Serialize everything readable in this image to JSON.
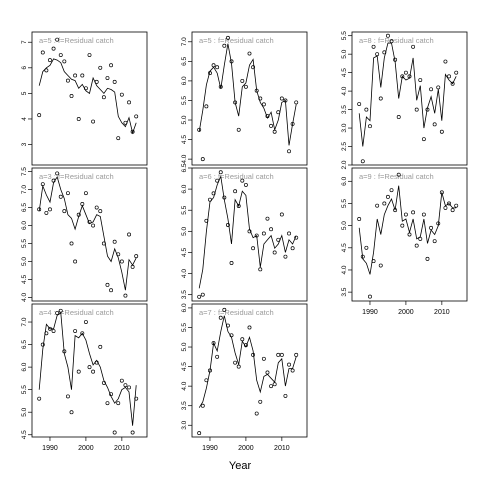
{
  "figure": {
    "xlabel": "Year"
  },
  "chart_data": [
    {
      "type": "scatter",
      "panel": "a=5",
      "label": "a=5 : f=Residual catch",
      "xlim": [
        1985,
        2017
      ],
      "ylim": [
        2.2,
        7.4
      ],
      "yticks": [
        3,
        4,
        5,
        6,
        7
      ],
      "xticks": [],
      "x": [
        1987,
        1988,
        1989,
        1990,
        1991,
        1992,
        1993,
        1994,
        1995,
        1996,
        1997,
        1998,
        1999,
        2000,
        2001,
        2002,
        2003,
        2004,
        2005,
        2006,
        2007,
        2008,
        2009,
        2010,
        2011,
        2012,
        2013,
        2014
      ],
      "y": [
        4.15,
        6.6,
        5.9,
        6.3,
        6.75,
        7.1,
        6.5,
        6.25,
        5.5,
        4.9,
        5.7,
        4.0,
        5.7,
        5.2,
        6.5,
        3.9,
        5.45,
        6.0,
        4.85,
        5.6,
        6.1,
        5.45,
        3.25,
        4.95,
        3.85,
        4.65,
        3.5,
        4.1
      ],
      "fit": [
        5.3,
        5.85,
        6.0,
        6.1,
        6.35,
        6.3,
        6.2,
        5.85,
        5.7,
        5.55,
        5.5,
        5.2,
        5.35,
        5.1,
        5.0,
        5.6,
        5.3,
        5.15,
        5.0,
        5.2,
        5.15,
        5.05,
        4.1,
        3.85,
        3.7,
        4.05,
        3.45,
        3.85
      ]
    },
    {
      "type": "scatter",
      "panel": "a=3",
      "label": "a=3 : f=Residual catch",
      "xlim": [
        1985,
        2017
      ],
      "ylim": [
        3.9,
        7.6
      ],
      "yticks": [
        4.0,
        4.5,
        5.0,
        5.5,
        6.0,
        6.5,
        7.0,
        7.5
      ],
      "xticks": [],
      "x": [
        1987,
        1988,
        1989,
        1990,
        1991,
        1992,
        1993,
        1994,
        1995,
        1996,
        1997,
        1998,
        1999,
        2000,
        2001,
        2002,
        2003,
        2004,
        2005,
        2006,
        2007,
        2008,
        2009,
        2010,
        2011,
        2012,
        2013,
        2014
      ],
      "y": [
        6.45,
        7.15,
        6.35,
        6.45,
        7.25,
        7.45,
        6.8,
        6.4,
        6.9,
        5.5,
        5.0,
        6.3,
        6.6,
        6.9,
        6.1,
        6.0,
        6.5,
        6.4,
        5.5,
        4.35,
        4.2,
        5.55,
        5.2,
        5.0,
        4.05,
        5.75,
        4.85,
        5.15
      ],
      "fit": [
        6.4,
        7.1,
        6.85,
        6.65,
        7.2,
        7.35,
        7.0,
        6.75,
        6.3,
        6.2,
        5.9,
        6.25,
        6.55,
        6.3,
        6.05,
        6.1,
        6.3,
        6.25,
        5.7,
        5.15,
        5.0,
        5.35,
        5.1,
        4.7,
        4.2,
        5.05,
        4.9,
        5.1
      ]
    },
    {
      "type": "scatter",
      "panel": "a=4",
      "label": "a=4 : f=Residual catch",
      "xlim": [
        1985,
        2017
      ],
      "ylim": [
        4.45,
        7.4
      ],
      "yticks": [
        4.5,
        5.0,
        5.5,
        6.0,
        6.5,
        7.0
      ],
      "xticks": [
        1990,
        2000,
        2010
      ],
      "x": [
        1987,
        1988,
        1989,
        1990,
        1991,
        1992,
        1993,
        1994,
        1995,
        1996,
        1997,
        1998,
        1999,
        2000,
        2001,
        2002,
        2003,
        2004,
        2005,
        2006,
        2007,
        2008,
        2009,
        2010,
        2011,
        2012,
        2013,
        2014
      ],
      "y": [
        5.3,
        6.5,
        6.75,
        6.85,
        6.8,
        7.2,
        7.25,
        6.35,
        5.35,
        5.0,
        6.8,
        5.9,
        6.75,
        7.0,
        6.0,
        5.9,
        6.1,
        6.45,
        5.65,
        5.2,
        5.4,
        4.55,
        5.2,
        5.7,
        5.6,
        5.55,
        4.55,
        5.3
      ],
      "fit": [
        5.5,
        6.4,
        6.95,
        6.85,
        6.85,
        7.15,
        7.2,
        6.3,
        6.0,
        5.5,
        6.7,
        6.65,
        6.75,
        6.6,
        6.3,
        6.05,
        6.15,
        6.0,
        5.7,
        5.55,
        5.35,
        5.2,
        5.3,
        5.5,
        5.55,
        5.45,
        4.7,
        5.6
      ]
    },
    {
      "type": "scatter",
      "panel": "a=5",
      "label": "a=5 : f=Residual catch",
      "xlim": [
        1985,
        2017
      ],
      "ylim": [
        3.85,
        7.25
      ],
      "yticks": [
        4.0,
        4.5,
        5.0,
        5.5,
        6.0,
        6.5,
        7.0
      ],
      "xticks": [],
      "x": [
        1987,
        1988,
        1989,
        1990,
        1991,
        1992,
        1993,
        1994,
        1995,
        1996,
        1997,
        1998,
        1999,
        2000,
        2001,
        2002,
        2003,
        2004,
        2005,
        2006,
        2007,
        2008,
        2009,
        2010,
        2011,
        2012,
        2013,
        2014
      ],
      "y": [
        4.75,
        4.0,
        5.35,
        6.2,
        6.4,
        6.35,
        5.85,
        6.9,
        7.1,
        6.5,
        5.45,
        4.75,
        6.0,
        5.85,
        6.7,
        6.35,
        5.75,
        5.55,
        5.4,
        5.1,
        4.85,
        4.7,
        5.2,
        5.55,
        5.5,
        4.2,
        4.9,
        5.45
      ],
      "fit": [
        4.7,
        5.25,
        5.9,
        6.25,
        6.35,
        6.2,
        5.8,
        6.4,
        6.95,
        6.45,
        5.45,
        5.1,
        5.85,
        5.95,
        6.4,
        6.55,
        5.75,
        5.45,
        5.3,
        5.05,
        5.2,
        4.75,
        5.0,
        5.45,
        5.5,
        4.35,
        4.9,
        5.4
      ]
    },
    {
      "type": "scatter",
      "panel": "a=6",
      "label": "a=6 : f=Residual catch",
      "xlim": [
        1985,
        2017
      ],
      "ylim": [
        3.35,
        6.5
      ],
      "yticks": [
        3.5,
        4.0,
        4.5,
        5.0,
        5.5,
        6.0,
        6.5
      ],
      "xticks": [],
      "x": [
        1987,
        1988,
        1989,
        1990,
        1991,
        1992,
        1993,
        1994,
        1995,
        1996,
        1997,
        1998,
        1999,
        2000,
        2001,
        2002,
        2003,
        2004,
        2005,
        2006,
        2007,
        2008,
        2009,
        2010,
        2011,
        2012,
        2013,
        2014
      ],
      "y": [
        3.45,
        3.5,
        5.25,
        5.75,
        5.9,
        6.2,
        6.4,
        5.8,
        5.15,
        4.25,
        5.95,
        5.6,
        6.2,
        6.1,
        5.0,
        4.6,
        4.9,
        4.1,
        4.95,
        5.3,
        5.05,
        4.5,
        4.8,
        5.4,
        4.4,
        4.95,
        4.6,
        4.85
      ],
      "fit": [
        3.65,
        4.1,
        5.0,
        5.7,
        5.8,
        6.1,
        6.3,
        5.75,
        5.3,
        4.7,
        5.75,
        5.6,
        5.95,
        5.85,
        5.05,
        4.85,
        4.9,
        4.15,
        4.7,
        4.8,
        4.9,
        4.6,
        4.7,
        4.9,
        4.5,
        4.8,
        4.7,
        4.9
      ]
    },
    {
      "type": "scatter",
      "panel": "a=7",
      "label": "a=7 : f=Residual catch",
      "xlim": [
        1985,
        2017
      ],
      "ylim": [
        2.7,
        6.1
      ],
      "yticks": [
        3.0,
        3.5,
        4.0,
        4.5,
        5.0,
        5.5,
        6.0
      ],
      "xticks": [
        1990,
        2000,
        2010
      ],
      "x": [
        1987,
        1988,
        1989,
        1990,
        1991,
        1992,
        1993,
        1994,
        1995,
        1996,
        1997,
        1998,
        1999,
        2000,
        2001,
        2002,
        2003,
        2004,
        2005,
        2006,
        2007,
        2008,
        2009,
        2010,
        2011,
        2012,
        2013,
        2014
      ],
      "y": [
        2.8,
        3.5,
        4.15,
        4.4,
        5.1,
        4.75,
        5.75,
        5.95,
        5.55,
        5.3,
        4.6,
        4.5,
        5.2,
        5.05,
        5.5,
        4.8,
        3.3,
        3.6,
        4.7,
        4.35,
        4.0,
        4.05,
        4.8,
        4.8,
        3.75,
        4.55,
        4.4,
        4.8
      ],
      "fit": [
        3.45,
        3.6,
        3.95,
        4.4,
        5.1,
        4.9,
        5.4,
        5.8,
        5.4,
        5.25,
        4.85,
        4.55,
        5.15,
        5.0,
        5.25,
        4.9,
        4.15,
        3.85,
        4.25,
        4.3,
        4.2,
        4.1,
        4.6,
        4.7,
        4.0,
        4.45,
        4.45,
        4.75
      ]
    },
    {
      "type": "scatter",
      "panel": "a=8",
      "label": "a=8 : f=Residual catch",
      "xlim": [
        1985,
        2017
      ],
      "ylim": [
        2.0,
        5.6
      ],
      "yticks": [
        2.0,
        2.5,
        3.0,
        3.5,
        4.0,
        4.5,
        5.0,
        5.5
      ],
      "xticks": [],
      "x": [
        1987,
        1988,
        1989,
        1990,
        1991,
        1992,
        1993,
        1994,
        1995,
        1996,
        1997,
        1998,
        1999,
        2000,
        2001,
        2002,
        2003,
        2004,
        2005,
        2006,
        2007,
        2008,
        2009,
        2010,
        2011,
        2012,
        2013,
        2014
      ],
      "y": [
        3.65,
        2.1,
        3.5,
        3.05,
        5.2,
        5.0,
        3.8,
        5.05,
        5.5,
        5.35,
        4.85,
        3.3,
        4.4,
        4.5,
        4.4,
        5.2,
        3.5,
        4.3,
        2.7,
        3.5,
        4.05,
        3.1,
        4.1,
        2.9,
        4.8,
        4.4,
        4.2,
        4.5
      ],
      "fit": [
        3.4,
        2.5,
        3.3,
        3.2,
        4.9,
        4.95,
        4.1,
        4.9,
        5.3,
        5.3,
        4.8,
        3.8,
        4.4,
        4.3,
        4.35,
        4.9,
        3.75,
        4.15,
        3.0,
        3.55,
        3.85,
        3.4,
        4.05,
        3.2,
        4.45,
        4.3,
        4.2,
        4.4
      ]
    },
    {
      "type": "scatter",
      "panel": "a=9",
      "label": "a=9 : f=Residual catch",
      "xlim": [
        1985,
        2017
      ],
      "ylim": [
        3.3,
        6.3
      ],
      "yticks": [
        3.5,
        4.0,
        4.5,
        5.0,
        5.5,
        6.0
      ],
      "xticks": [
        1990,
        2000,
        2010
      ],
      "x": [
        1987,
        1988,
        1989,
        1990,
        1991,
        1992,
        1993,
        1994,
        1995,
        1996,
        1997,
        1998,
        1999,
        2000,
        2001,
        2002,
        2003,
        2004,
        2005,
        2006,
        2007,
        2008,
        2009,
        2010,
        2011,
        2012,
        2013,
        2014
      ],
      "y": [
        5.15,
        4.3,
        4.5,
        3.4,
        4.2,
        5.45,
        4.1,
        5.5,
        5.65,
        5.8,
        5.35,
        6.15,
        5.0,
        5.25,
        4.8,
        5.3,
        4.55,
        4.7,
        5.25,
        4.25,
        4.95,
        4.65,
        5.05,
        5.75,
        5.4,
        5.5,
        5.35,
        5.45
      ],
      "fit": [
        4.95,
        4.25,
        4.15,
        3.9,
        4.4,
        5.15,
        4.8,
        5.25,
        5.45,
        5.6,
        5.35,
        5.9,
        5.1,
        5.15,
        4.85,
        5.15,
        4.7,
        4.75,
        5.15,
        4.6,
        4.9,
        4.8,
        5.0,
        5.75,
        5.45,
        5.5,
        5.4,
        5.4
      ]
    }
  ]
}
